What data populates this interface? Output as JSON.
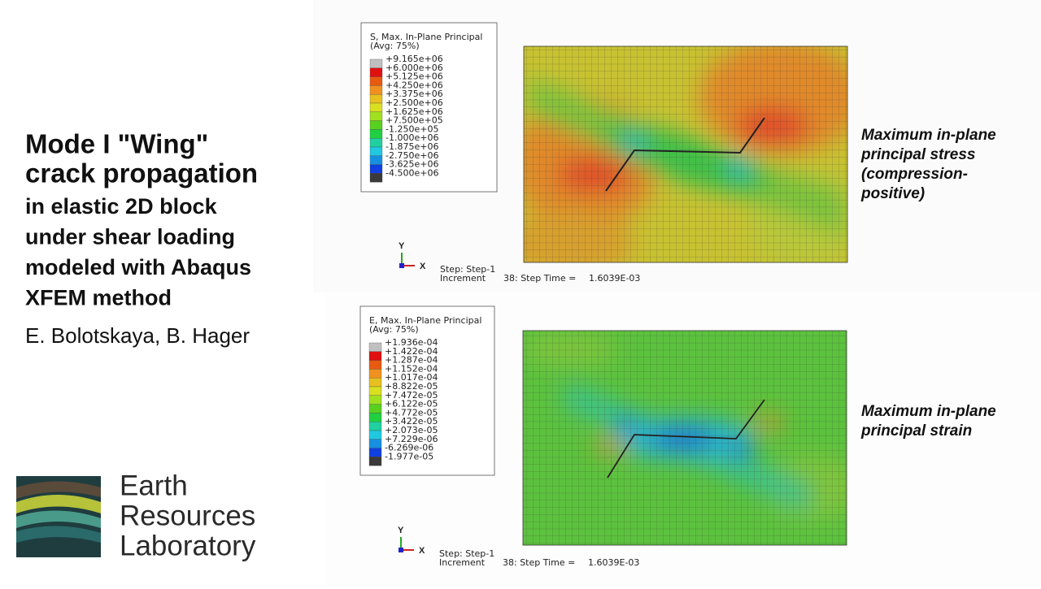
{
  "slide": {
    "title_lines": [
      "Mode I \"Wing\"",
      "crack propagation"
    ],
    "subtitle_lines": [
      "in elastic 2D block",
      "under shear loading",
      "modeled with Abaqus",
      "XFEM method"
    ],
    "authors": "E. Bolotskaya, B. Hager",
    "logo_lines": [
      "Earth",
      "Resources",
      "Laboratory"
    ]
  },
  "panels": [
    {
      "legend_title": "S, Max. In-Plane Principal",
      "legend_avg": "(Avg: 75%)",
      "legend_labels": [
        "+9.165e+06",
        "+6.000e+06",
        "+5.125e+06",
        "+4.250e+06",
        "+3.375e+06",
        "+2.500e+06",
        "+1.625e+06",
        "+7.500e+05",
        "-1.250e+05",
        "-1.000e+06",
        "-1.875e+06",
        "-2.750e+06",
        "-3.625e+06",
        "-4.500e+06"
      ],
      "axis_y": "Y",
      "axis_x": "X",
      "step": "Step: Step-1",
      "increment": "Increment",
      "increment_value": "38: Step Time =",
      "step_time": "1.6039E-03",
      "caption_lines": [
        "Maximum in-plane",
        "principal stress",
        "(compression-",
        "positive)"
      ]
    },
    {
      "legend_title": "E, Max. In-Plane Principal",
      "legend_avg": "(Avg: 75%)",
      "legend_labels": [
        "+1.936e-04",
        "+1.422e-04",
        "+1.287e-04",
        "+1.152e-04",
        "+1.017e-04",
        "+8.822e-05",
        "+7.472e-05",
        "+6.122e-05",
        "+4.772e-05",
        "+3.422e-05",
        "+2.073e-05",
        "+7.229e-06",
        "-6.269e-06",
        "-1.977e-05"
      ],
      "axis_y": "Y",
      "axis_x": "X",
      "step": "Step: Step-1",
      "increment": "Increment",
      "increment_value": "38: Step Time =",
      "step_time": "1.6039E-03",
      "caption_lines": [
        "Maximum in-plane",
        "principal strain"
      ]
    }
  ]
}
